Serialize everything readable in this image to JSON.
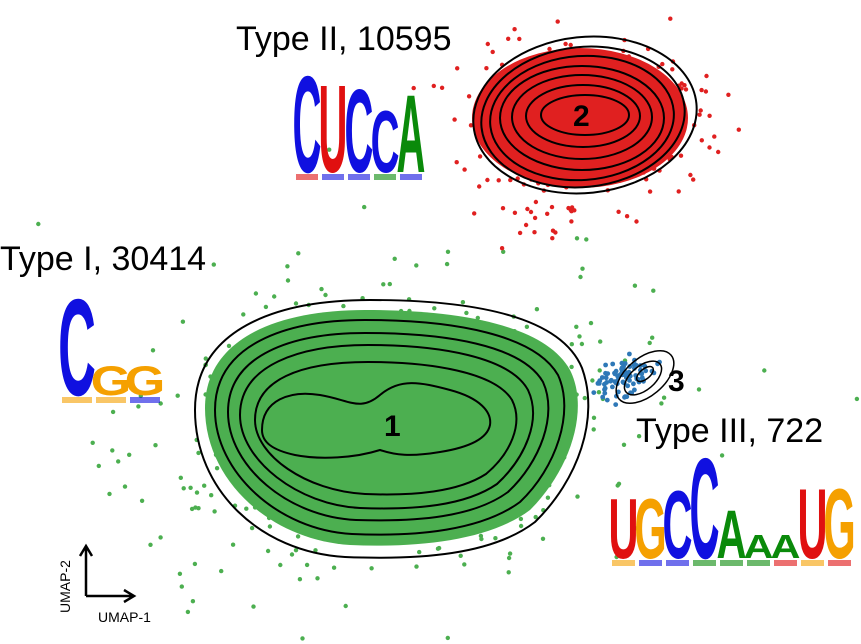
{
  "chart_data": {
    "type": "scatter",
    "xlabel": "UMAP-1",
    "ylabel": "UMAP-2",
    "clusters": [
      {
        "id": "1",
        "label": "Type I, 30414",
        "color": "#4caf50",
        "motif": [
          "C",
          "G",
          "G"
        ]
      },
      {
        "id": "2",
        "label": "Type II, 10595",
        "color": "#e02020",
        "motif": [
          "C",
          "U",
          "C",
          "C",
          "A"
        ]
      },
      {
        "id": "3",
        "label": "Type III, 722",
        "color": "#2e78b7",
        "motif": [
          "U",
          "G",
          "C",
          "C",
          "A",
          "A",
          "A",
          "U",
          "G"
        ]
      }
    ]
  }
}
